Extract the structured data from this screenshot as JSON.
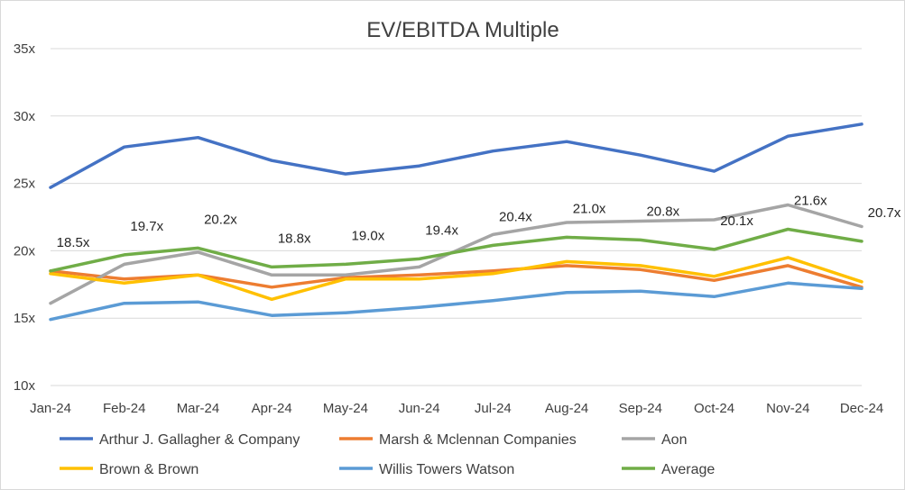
{
  "chart_data": {
    "type": "line",
    "title": "EV/EBITDA Multiple",
    "xlabel": "",
    "ylabel": "",
    "categories": [
      "Jan-24",
      "Feb-24",
      "Mar-24",
      "Apr-24",
      "May-24",
      "Jun-24",
      "Jul-24",
      "Aug-24",
      "Sep-24",
      "Oct-24",
      "Nov-24",
      "Dec-24"
    ],
    "ylim": [
      10,
      35
    ],
    "yticks": [
      10,
      15,
      20,
      25,
      30,
      35
    ],
    "ytick_labels": [
      "10x",
      "15x",
      "20x",
      "25x",
      "30x",
      "35x"
    ],
    "grid": true,
    "legend_position": "bottom",
    "series": [
      {
        "name": "Arthur J. Gallagher & Company",
        "color": "#4472C4",
        "values": [
          24.7,
          27.7,
          28.4,
          26.7,
          25.7,
          26.3,
          27.4,
          28.1,
          27.1,
          25.9,
          28.5,
          29.4
        ]
      },
      {
        "name": "Marsh & Mclennan Companies",
        "color": "#ED7D31",
        "values": [
          18.5,
          17.9,
          18.2,
          17.3,
          18.0,
          18.2,
          18.5,
          18.9,
          18.6,
          17.8,
          18.9,
          17.3
        ]
      },
      {
        "name": "Aon",
        "color": "#A5A5A5",
        "values": [
          16.1,
          19.0,
          19.9,
          18.2,
          18.2,
          18.8,
          21.2,
          22.1,
          22.2,
          22.3,
          23.4,
          21.8
        ]
      },
      {
        "name": "Brown & Brown",
        "color": "#FFC000",
        "values": [
          18.3,
          17.6,
          18.2,
          16.4,
          17.9,
          17.9,
          18.3,
          19.2,
          18.9,
          18.1,
          19.5,
          17.7
        ]
      },
      {
        "name": "Willis Towers Watson",
        "color": "#5B9BD5",
        "values": [
          14.9,
          16.1,
          16.2,
          15.2,
          15.4,
          15.8,
          16.3,
          16.9,
          17.0,
          16.6,
          17.6,
          17.2
        ]
      },
      {
        "name": "Average",
        "color": "#70AD47",
        "values": [
          18.5,
          19.7,
          20.2,
          18.8,
          19.0,
          19.4,
          20.4,
          21.0,
          20.8,
          20.1,
          21.6,
          20.7
        ],
        "data_labels": [
          "18.5x",
          "19.7x",
          "20.2x",
          "18.8x",
          "19.0x",
          "19.4x",
          "20.4x",
          "21.0x",
          "20.8x",
          "20.1x",
          "21.6x",
          "20.7x"
        ]
      }
    ]
  }
}
